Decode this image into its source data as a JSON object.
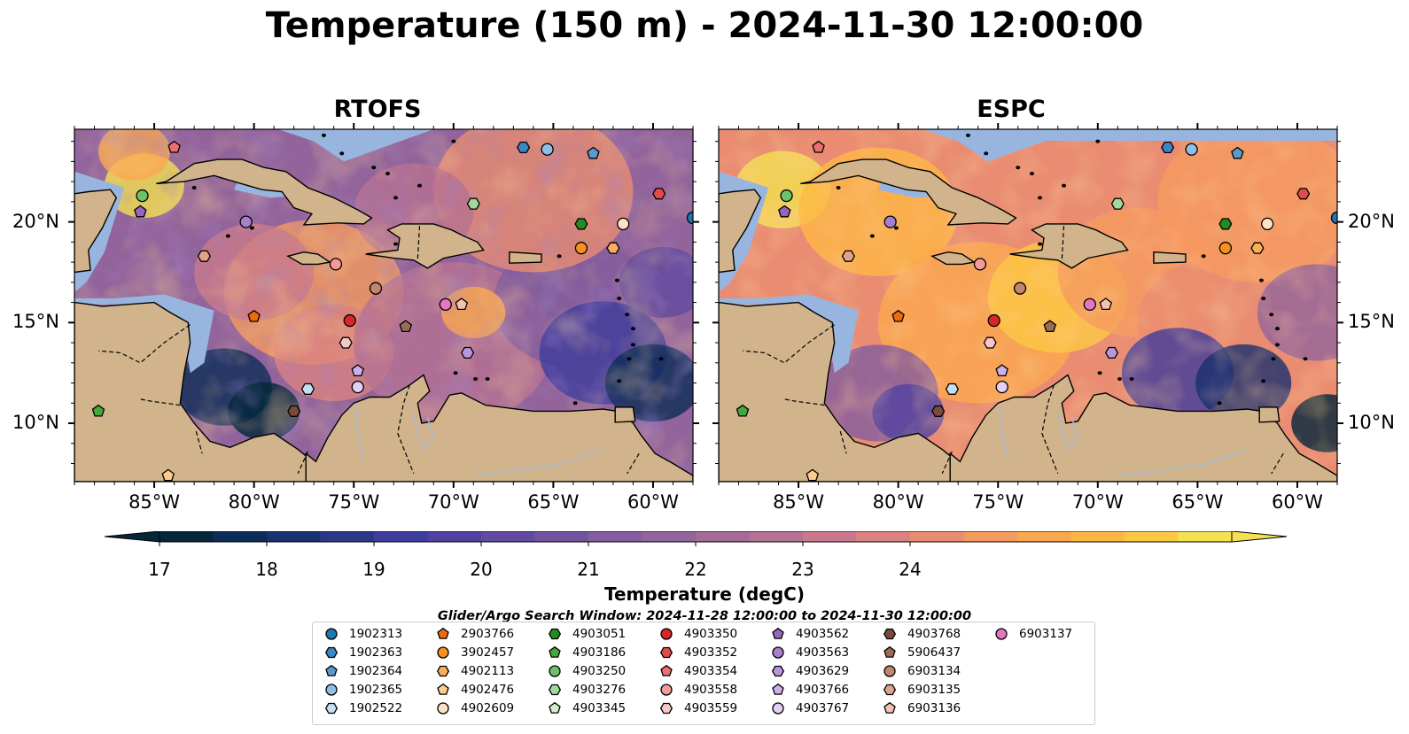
{
  "title": "Temperature (150 m) - 2024-11-30 12:00:00",
  "panels": [
    {
      "title": "RTOFS"
    },
    {
      "title": "ESPC"
    }
  ],
  "lat_labels": [
    "20°N",
    "15°N",
    "10°N"
  ],
  "lon_labels": [
    "85°W",
    "80°W",
    "75°W",
    "70°W",
    "65°W",
    "60°W"
  ],
  "colorbar": {
    "label": "Temperature (degC)",
    "ticks": [
      "17",
      "18",
      "19",
      "20",
      "21",
      "22",
      "23",
      "24"
    ],
    "min": 17,
    "max": 25,
    "step": 0.5,
    "extend": "both",
    "colors": [
      "#04273a",
      "#0c2d57",
      "#1a316f",
      "#2d3689",
      "#3e3c9c",
      "#5242a0",
      "#624a9f",
      "#72549e",
      "#835d9d",
      "#93649b",
      "#a46b97",
      "#b67292",
      "#c9798b",
      "#da8281",
      "#e98c72",
      "#f59a5f",
      "#fba74e",
      "#feb745",
      "#fcc844",
      "#f4e151"
    ]
  },
  "land_color": "#d2b48c",
  "shelf_color": "#98b5e0",
  "legend": {
    "title": "Glider/Argo Search Window: 2024-11-28 12:00:00 to 2024-11-30 12:00:00",
    "items": [
      {
        "label": "1902313",
        "marker": "circle",
        "color": "#1f77b4"
      },
      {
        "label": "1902363",
        "marker": "hexagon",
        "color": "#3c86c4"
      },
      {
        "label": "1902364",
        "marker": "pentagon",
        "color": "#5b99d1"
      },
      {
        "label": "1902365",
        "marker": "circle",
        "color": "#8fbde6"
      },
      {
        "label": "1902522",
        "marker": "hexagon",
        "color": "#c6def2"
      },
      {
        "label": "2903766",
        "marker": "pentagon",
        "color": "#ec6c0b"
      },
      {
        "label": "3902457",
        "marker": "circle",
        "color": "#f7901e"
      },
      {
        "label": "4902113",
        "marker": "hexagon",
        "color": "#fbad5b"
      },
      {
        "label": "4902476",
        "marker": "pentagon",
        "color": "#fdcb90"
      },
      {
        "label": "4902609",
        "marker": "circle",
        "color": "#fde2c4"
      },
      {
        "label": "4903051",
        "marker": "hexagon",
        "color": "#228c22"
      },
      {
        "label": "4903186",
        "marker": "pentagon",
        "color": "#42a83f"
      },
      {
        "label": "4903250",
        "marker": "circle",
        "color": "#6cc16a"
      },
      {
        "label": "4903276",
        "marker": "hexagon",
        "color": "#a1d99b"
      },
      {
        "label": "4903345",
        "marker": "pentagon",
        "color": "#d2f0cc"
      },
      {
        "label": "4903350",
        "marker": "circle",
        "color": "#d62728"
      },
      {
        "label": "4903352",
        "marker": "hexagon",
        "color": "#e24a4a"
      },
      {
        "label": "4903354",
        "marker": "pentagon",
        "color": "#ec7070"
      },
      {
        "label": "4903558",
        "marker": "circle",
        "color": "#f49a9a"
      },
      {
        "label": "4903559",
        "marker": "hexagon",
        "color": "#f9c7c7"
      },
      {
        "label": "4903562",
        "marker": "pentagon",
        "color": "#9467bd"
      },
      {
        "label": "4903563",
        "marker": "circle",
        "color": "#a67fcd"
      },
      {
        "label": "4903629",
        "marker": "hexagon",
        "color": "#b896dc"
      },
      {
        "label": "4903766",
        "marker": "pentagon",
        "color": "#ccb0ea"
      },
      {
        "label": "4903767",
        "marker": "circle",
        "color": "#e3cff5"
      },
      {
        "label": "4903768",
        "marker": "hexagon",
        "color": "#7b4a3a"
      },
      {
        "label": "5906437",
        "marker": "pentagon",
        "color": "#9c6b58"
      },
      {
        "label": "6903134",
        "marker": "circle",
        "color": "#c08670"
      },
      {
        "label": "6903135",
        "marker": "hexagon",
        "color": "#e0a48e"
      },
      {
        "label": "6903136",
        "marker": "pentagon",
        "color": "#f4c3b0"
      },
      {
        "label": "6903137",
        "marker": "circle",
        "color": "#e377c2"
      }
    ]
  },
  "stations": [
    {
      "id": "4903354",
      "lon": -84.0,
      "lat": 23.7
    },
    {
      "id": "4903250",
      "lon": -85.6,
      "lat": 21.3
    },
    {
      "id": "4903562",
      "lon": -85.7,
      "lat": 20.5
    },
    {
      "id": "4903563",
      "lon": -80.4,
      "lat": 20.0
    },
    {
      "id": "6903135",
      "lon": -82.5,
      "lat": 18.3
    },
    {
      "id": "4903558",
      "lon": -75.9,
      "lat": 17.9
    },
    {
      "id": "6903134",
      "lon": -73.9,
      "lat": 16.7
    },
    {
      "id": "2903766",
      "lon": -80.0,
      "lat": 15.3
    },
    {
      "id": "4903350",
      "lon": -75.2,
      "lat": 15.1
    },
    {
      "id": "4903559",
      "lon": -75.4,
      "lat": 14.0
    },
    {
      "id": "5906437",
      "lon": -72.4,
      "lat": 14.8
    },
    {
      "id": "6903137",
      "lon": -70.4,
      "lat": 15.9
    },
    {
      "id": "6903136",
      "lon": -69.6,
      "lat": 15.9
    },
    {
      "id": "4903629",
      "lon": -69.3,
      "lat": 13.5
    },
    {
      "id": "4903766",
      "lon": -74.8,
      "lat": 12.6
    },
    {
      "id": "4903767",
      "lon": -74.8,
      "lat": 11.8
    },
    {
      "id": "1902522",
      "lon": -77.3,
      "lat": 11.7
    },
    {
      "id": "4903768",
      "lon": -78.0,
      "lat": 10.6
    },
    {
      "id": "4903186",
      "lon": -87.8,
      "lat": 10.6
    },
    {
      "id": "4902476",
      "lon": -84.3,
      "lat": 7.4
    },
    {
      "id": "1902363",
      "lon": -66.5,
      "lat": 23.7
    },
    {
      "id": "1902365",
      "lon": -65.3,
      "lat": 23.6
    },
    {
      "id": "1902364",
      "lon": -63.0,
      "lat": 23.4
    },
    {
      "id": "4903276",
      "lon": -69.0,
      "lat": 20.9
    },
    {
      "id": "4903051",
      "lon": -63.6,
      "lat": 19.9
    },
    {
      "id": "4902609",
      "lon": -61.5,
      "lat": 19.9
    },
    {
      "id": "3902457",
      "lon": -63.6,
      "lat": 18.7
    },
    {
      "id": "4902113",
      "lon": -62.0,
      "lat": 18.7
    },
    {
      "id": "4903352",
      "lon": -59.7,
      "lat": 21.4
    },
    {
      "id": "1902313",
      "lon": -58.0,
      "lat": 20.2
    }
  ]
}
